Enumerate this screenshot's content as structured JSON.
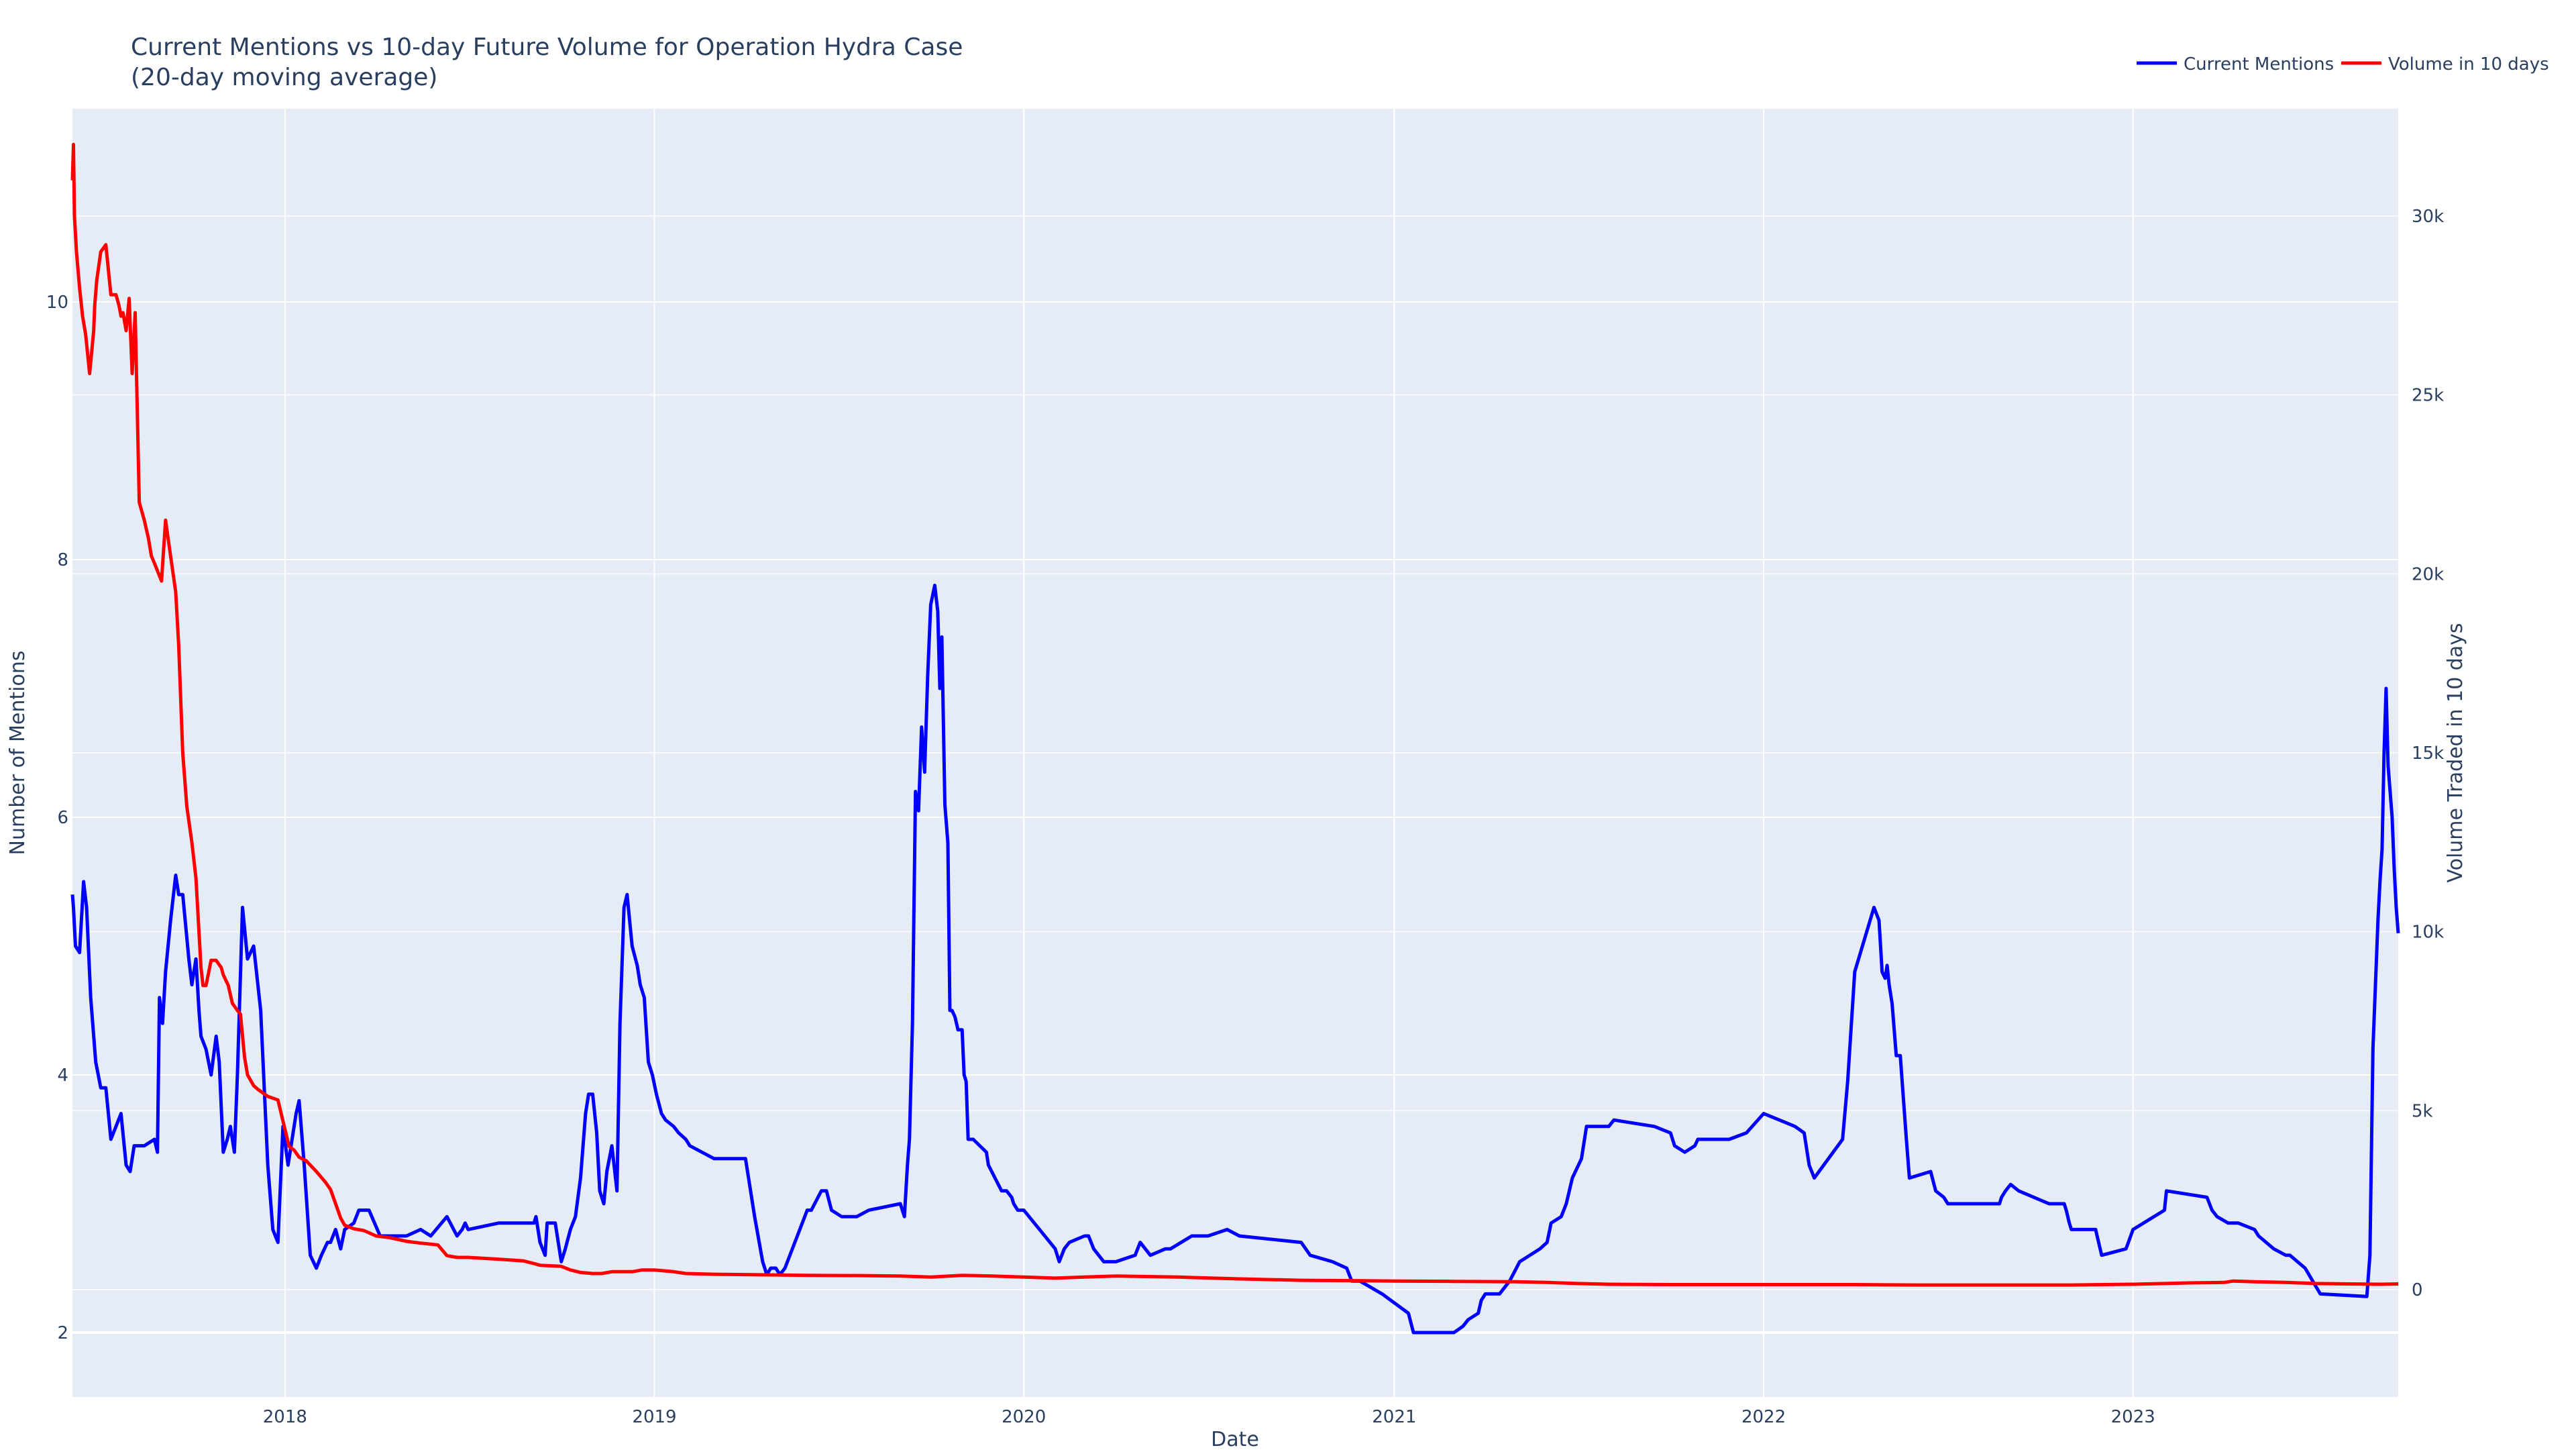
{
  "chart_data": {
    "type": "line",
    "title": "Current Mentions vs 10-day Future Volume for Operation Hydra Case",
    "subtitle": "(20-day moving average)",
    "xlabel": "Date",
    "ylabel": "Number of Mentions",
    "y2label": "Volume Traded in 10 days",
    "xlim": [
      "2017-06-05",
      "2023-09-20"
    ],
    "ylim": [
      1.5,
      11.5
    ],
    "y2lim": [
      -3000,
      33000
    ],
    "x_ticks": [
      "2018",
      "2019",
      "2020",
      "2021",
      "2022",
      "2023"
    ],
    "y_ticks": [
      "2",
      "4",
      "6",
      "8",
      "10"
    ],
    "y2_ticks": [
      "0",
      "5k",
      "10k",
      "15k",
      "20k",
      "25k",
      "30k"
    ],
    "grid": true,
    "legend_position": "top-right",
    "colors": {
      "plot_bg": "#e5ecf6",
      "grid": "#ffffff",
      "text": "#2a3f5f"
    },
    "series": [
      {
        "name": "Current Mentions",
        "color": "#0000ff",
        "axis": "left",
        "x": [
          "2017-06-05",
          "2017-06-06",
          "2017-06-08",
          "2017-06-12",
          "2017-06-16",
          "2017-06-19",
          "2017-06-23",
          "2017-06-28",
          "2017-07-03",
          "2017-07-08",
          "2017-07-13",
          "2017-07-18",
          "2017-07-23",
          "2017-07-28",
          "2017-08-01",
          "2017-08-05",
          "2017-08-10",
          "2017-08-15",
          "2017-08-25",
          "2017-08-28",
          "2017-08-30",
          "2017-09-02",
          "2017-09-05",
          "2017-09-10",
          "2017-09-15",
          "2017-09-18",
          "2017-09-22",
          "2017-09-28",
          "2017-10-01",
          "2017-10-05",
          "2017-10-08",
          "2017-10-10",
          "2017-10-15",
          "2017-10-20",
          "2017-10-25",
          "2017-10-28",
          "2017-11-01",
          "2017-11-05",
          "2017-11-08",
          "2017-11-12",
          "2017-11-15",
          "2017-11-20",
          "2017-11-25",
          "2017-12-01",
          "2017-12-08",
          "2017-12-15",
          "2017-12-20",
          "2017-12-25",
          "2017-12-30",
          "2018-01-04",
          "2018-01-08",
          "2018-01-12",
          "2018-01-15",
          "2018-01-20",
          "2018-01-26",
          "2018-02-01",
          "2018-02-06",
          "2018-02-12",
          "2018-02-15",
          "2018-02-20",
          "2018-02-25",
          "2018-03-01",
          "2018-03-10",
          "2018-03-15",
          "2018-03-25",
          "2018-04-05",
          "2018-04-25",
          "2018-05-01",
          "2018-05-15",
          "2018-05-25",
          "2018-06-10",
          "2018-06-20",
          "2018-06-25",
          "2018-06-28",
          "2018-07-01",
          "2018-07-31",
          "2018-08-01",
          "2018-09-04",
          "2018-09-06",
          "2018-09-10",
          "2018-09-15",
          "2018-09-17",
          "2018-09-25",
          "2018-10-01",
          "2018-10-05",
          "2018-10-10",
          "2018-10-15",
          "2018-10-20",
          "2018-10-25",
          "2018-10-28",
          "2018-11-01",
          "2018-11-05",
          "2018-11-08",
          "2018-11-12",
          "2018-11-15",
          "2018-11-20",
          "2018-11-25",
          "2018-11-28",
          "2018-12-02",
          "2018-12-05",
          "2018-12-10",
          "2018-12-15",
          "2018-12-18",
          "2018-12-22",
          "2018-12-26",
          "2018-12-30",
          "2019-01-03",
          "2019-01-08",
          "2019-01-12",
          "2019-01-20",
          "2019-01-25",
          "2019-02-01",
          "2019-02-05",
          "2019-03-01",
          "2019-04-01",
          "2019-04-10",
          "2019-04-18",
          "2019-04-22",
          "2019-04-26",
          "2019-05-01",
          "2019-05-05",
          "2019-05-10",
          "2019-06-01",
          "2019-06-05",
          "2019-06-15",
          "2019-06-20",
          "2019-06-25",
          "2019-07-05",
          "2019-07-20",
          "2019-08-01",
          "2019-09-01",
          "2019-09-05",
          "2019-09-08",
          "2019-09-10",
          "2019-09-13",
          "2019-09-16",
          "2019-09-19",
          "2019-09-22",
          "2019-09-25",
          "2019-09-28",
          "2019-10-01",
          "2019-10-05",
          "2019-10-08",
          "2019-10-10",
          "2019-10-12",
          "2019-10-15",
          "2019-10-18",
          "2019-10-20",
          "2019-10-22",
          "2019-10-25",
          "2019-10-28",
          "2019-11-01",
          "2019-11-03",
          "2019-11-05",
          "2019-11-07",
          "2019-11-12",
          "2019-11-25",
          "2019-11-27",
          "2019-12-10",
          "2019-12-15",
          "2019-12-20",
          "2019-12-22",
          "2019-12-26",
          "2020-01-01",
          "2020-02-01",
          "2020-02-05",
          "2020-02-10",
          "2020-02-15",
          "2020-03-01",
          "2020-03-05",
          "2020-03-10",
          "2020-03-20",
          "2020-04-01",
          "2020-04-20",
          "2020-04-25",
          "2020-05-05",
          "2020-05-20",
          "2020-05-25",
          "2020-06-15",
          "2020-07-01",
          "2020-07-20",
          "2020-08-01",
          "2020-10-01",
          "2020-10-10",
          "2020-11-01",
          "2020-11-15",
          "2020-11-20",
          "2020-11-28",
          "2020-12-20",
          "2021-01-15",
          "2021-01-20",
          "2021-03-01",
          "2021-03-10",
          "2021-03-15",
          "2021-03-25",
          "2021-03-28",
          "2021-04-01",
          "2021-04-15",
          "2021-04-25",
          "2021-05-05",
          "2021-05-15",
          "2021-05-25",
          "2021-06-01",
          "2021-06-05",
          "2021-06-15",
          "2021-06-20",
          "2021-06-26",
          "2021-07-05",
          "2021-07-10",
          "2021-07-20",
          "2021-07-25",
          "2021-08-01",
          "2021-08-06",
          "2021-09-15",
          "2021-10-01",
          "2021-10-05",
          "2021-10-15",
          "2021-10-25",
          "2021-10-28",
          "2021-11-28",
          "2021-12-15",
          "2022-01-01",
          "2022-02-01",
          "2022-02-10",
          "2022-02-15",
          "2022-02-20",
          "2022-03-20",
          "2022-03-25",
          "2022-04-01",
          "2022-04-20",
          "2022-04-25",
          "2022-04-28",
          "2022-05-01",
          "2022-05-03",
          "2022-05-05",
          "2022-05-08",
          "2022-05-12",
          "2022-05-16",
          "2022-05-22",
          "2022-05-25",
          "2022-06-15",
          "2022-06-20",
          "2022-06-28",
          "2022-07-02",
          "2022-08-20",
          "2022-08-22",
          "2022-08-24",
          "2022-08-28",
          "2022-09-02",
          "2022-09-10",
          "2022-10-10",
          "2022-10-25",
          "2022-10-27",
          "2022-10-30",
          "2022-11-01",
          "2022-11-05",
          "2022-11-15",
          "2022-11-25",
          "2022-12-01",
          "2022-12-25",
          "2023-01-01",
          "2023-02-01",
          "2023-02-03",
          "2023-03-15",
          "2023-03-20",
          "2023-03-25",
          "2023-04-05",
          "2023-04-15",
          "2023-05-01",
          "2023-05-05",
          "2023-05-20",
          "2023-06-01",
          "2023-06-05",
          "2023-06-20",
          "2023-07-05",
          "2023-08-20",
          "2023-08-23",
          "2023-08-26",
          "2023-08-28",
          "2023-08-31",
          "2023-09-02",
          "2023-09-04",
          "2023-09-06",
          "2023-09-08",
          "2023-09-10",
          "2023-09-12",
          "2023-09-14",
          "2023-09-16",
          "2023-09-18",
          "2023-09-20"
        ],
        "y": [
          5.4,
          5.3,
          5.0,
          4.95,
          5.5,
          5.3,
          4.6,
          4.1,
          3.9,
          3.9,
          3.5,
          3.6,
          3.7,
          3.3,
          3.25,
          3.45,
          3.45,
          3.45,
          3.5,
          3.4,
          4.6,
          4.4,
          4.8,
          5.2,
          5.55,
          5.4,
          5.4,
          4.9,
          4.7,
          4.9,
          4.5,
          4.3,
          4.2,
          4.0,
          4.3,
          4.1,
          3.4,
          3.5,
          3.6,
          3.4,
          4.0,
          5.3,
          4.9,
          5.0,
          4.5,
          3.3,
          2.8,
          2.7,
          3.6,
          3.3,
          3.5,
          3.7,
          3.8,
          3.3,
          2.6,
          2.5,
          2.6,
          2.7,
          2.7,
          2.8,
          2.65,
          2.8,
          2.85,
          2.95,
          2.95,
          2.75,
          2.75,
          2.75,
          2.8,
          2.75,
          2.9,
          2.75,
          2.8,
          2.85,
          2.8,
          2.85,
          2.85,
          2.85,
          2.9,
          2.7,
          2.6,
          2.85,
          2.85,
          2.55,
          2.65,
          2.8,
          2.9,
          3.2,
          3.7,
          3.85,
          3.85,
          3.55,
          3.1,
          3.0,
          3.25,
          3.45,
          3.1,
          4.4,
          5.3,
          5.4,
          5.0,
          4.85,
          4.7,
          4.6,
          4.1,
          4.0,
          3.85,
          3.7,
          3.65,
          3.6,
          3.55,
          3.5,
          3.45,
          3.35,
          3.35,
          2.9,
          2.55,
          2.45,
          2.5,
          2.5,
          2.45,
          2.5,
          2.95,
          2.95,
          3.1,
          3.1,
          2.95,
          2.9,
          2.9,
          2.95,
          3.0,
          2.9,
          3.3,
          3.5,
          4.4,
          6.2,
          6.05,
          6.7,
          6.35,
          7.1,
          7.65,
          7.8,
          7.6,
          7.0,
          7.4,
          6.1,
          5.8,
          4.5,
          4.5,
          4.45,
          4.35,
          4.35,
          4.0,
          3.95,
          3.5,
          3.5,
          3.4,
          3.3,
          3.1,
          3.1,
          3.05,
          3.0,
          2.95,
          2.95,
          2.65,
          2.55,
          2.65,
          2.7,
          2.75,
          2.75,
          2.65,
          2.55,
          2.55,
          2.6,
          2.7,
          2.6,
          2.65,
          2.65,
          2.75,
          2.75,
          2.8,
          2.75,
          2.7,
          2.6,
          2.55,
          2.5,
          2.4,
          2.4,
          2.3,
          2.15,
          2.0,
          2.0,
          2.05,
          2.1,
          2.15,
          2.25,
          2.3,
          2.3,
          2.4,
          2.55,
          2.6,
          2.65,
          2.7,
          2.85,
          2.9,
          3.0,
          3.2,
          3.35,
          3.6,
          3.6,
          3.6,
          3.6,
          3.65,
          3.6,
          3.55,
          3.45,
          3.4,
          3.45,
          3.5,
          3.5,
          3.55,
          3.7,
          3.6,
          3.55,
          3.3,
          3.2,
          3.5,
          3.95,
          4.8,
          5.3,
          5.2,
          4.8,
          4.75,
          4.85,
          4.7,
          4.55,
          4.15,
          4.15,
          3.5,
          3.2,
          3.25,
          3.1,
          3.05,
          3.0,
          3.0,
          3.0,
          3.05,
          3.1,
          3.15,
          3.1,
          3.0,
          3.0,
          2.95,
          2.85,
          2.8,
          2.8,
          2.8,
          2.8,
          2.6,
          2.65,
          2.8,
          2.95,
          3.1,
          3.05,
          2.95,
          2.9,
          2.85,
          2.85,
          2.8,
          2.75,
          2.65,
          2.6,
          2.6,
          2.5,
          2.3,
          2.28,
          2.6,
          4.2,
          4.6,
          5.2,
          5.5,
          5.75,
          6.5,
          7.0,
          6.4,
          6.2,
          6.0,
          5.6,
          5.3,
          5.1
        ]
      },
      {
        "name": "Volume in 10 days",
        "color": "#ff0000",
        "axis": "right",
        "x": [
          "2017-06-05",
          "2017-06-06",
          "2017-06-07",
          "2017-06-09",
          "2017-06-12",
          "2017-06-15",
          "2017-06-18",
          "2017-06-22",
          "2017-06-26",
          "2017-06-27",
          "2017-06-29",
          "2017-07-03",
          "2017-07-08",
          "2017-07-13",
          "2017-07-18",
          "2017-07-21",
          "2017-07-23",
          "2017-07-25",
          "2017-07-28",
          "2017-07-31",
          "2017-08-03",
          "2017-08-06",
          "2017-08-10",
          "2017-08-15",
          "2017-08-19",
          "2017-08-22",
          "2017-08-25",
          "2017-09-01",
          "2017-09-05",
          "2017-09-10",
          "2017-09-15",
          "2017-09-18",
          "2017-09-22",
          "2017-09-26",
          "2017-10-01",
          "2017-10-05",
          "2017-10-10",
          "2017-10-12",
          "2017-10-15",
          "2017-10-20",
          "2017-10-25",
          "2017-10-30",
          "2017-11-01",
          "2017-11-06",
          "2017-11-10",
          "2017-11-15",
          "2017-11-18",
          "2017-11-22",
          "2017-11-25",
          "2017-12-01",
          "2017-12-05",
          "2017-12-10",
          "2017-12-15",
          "2017-12-25",
          "2018-01-05",
          "2018-01-10",
          "2018-01-15",
          "2018-01-22",
          "2018-02-01",
          "2018-02-10",
          "2018-02-15",
          "2018-02-20",
          "2018-02-25",
          "2018-03-01",
          "2018-03-10",
          "2018-03-20",
          "2018-04-01",
          "2018-04-15",
          "2018-05-01",
          "2018-05-15",
          "2018-06-01",
          "2018-06-10",
          "2018-06-20",
          "2018-07-01",
          "2018-08-01",
          "2018-08-25",
          "2018-09-01",
          "2018-09-05",
          "2018-09-10",
          "2018-10-01",
          "2018-10-10",
          "2018-10-20",
          "2018-11-01",
          "2018-11-10",
          "2018-11-20",
          "2018-12-10",
          "2018-12-20",
          "2019-01-01",
          "2019-01-20",
          "2019-02-01",
          "2019-03-01",
          "2019-04-01",
          "2019-05-01",
          "2019-06-01",
          "2019-08-01",
          "2019-09-01",
          "2019-10-01",
          "2019-10-20",
          "2019-11-01",
          "2019-12-01",
          "2020-01-01",
          "2020-02-01",
          "2020-03-01",
          "2020-04-01",
          "2020-06-01",
          "2020-08-01",
          "2020-10-01",
          "2020-12-01",
          "2021-01-01",
          "2021-03-01",
          "2021-05-01",
          "2021-06-01",
          "2021-07-01",
          "2021-08-01",
          "2021-10-01",
          "2021-12-01",
          "2022-02-01",
          "2022-04-01",
          "2022-06-01",
          "2022-08-01",
          "2022-10-01",
          "2022-11-01",
          "2023-01-01",
          "2023-03-01",
          "2023-04-01",
          "2023-04-10",
          "2023-05-01",
          "2023-06-01",
          "2023-07-01",
          "2023-08-01",
          "2023-09-01",
          "2023-09-20"
        ],
        "y": [
          31000,
          32000,
          30000,
          29000,
          28000,
          27200,
          26700,
          25600,
          26800,
          27500,
          28200,
          29000,
          29200,
          27800,
          27800,
          27500,
          27200,
          27300,
          26800,
          27700,
          25600,
          27300,
          22000,
          21500,
          21000,
          20500,
          20300,
          19800,
          21500,
          20500,
          19500,
          18000,
          15000,
          13500,
          12500,
          11500,
          9000,
          8500,
          8500,
          9200,
          9200,
          9000,
          8800,
          8500,
          8000,
          7800,
          7700,
          6500,
          6000,
          5700,
          5600,
          5500,
          5400,
          5300,
          4000,
          3900,
          3700,
          3600,
          3300,
          3000,
          2800,
          2400,
          2000,
          1800,
          1700,
          1650,
          1500,
          1450,
          1350,
          1300,
          1250,
          950,
          900,
          900,
          850,
          800,
          750,
          720,
          680,
          650,
          550,
          480,
          450,
          450,
          500,
          500,
          550,
          550,
          500,
          450,
          430,
          420,
          410,
          400,
          390,
          380,
          350,
          380,
          400,
          380,
          350,
          320,
          350,
          380,
          350,
          300,
          260,
          250,
          240,
          230,
          220,
          200,
          170,
          150,
          140,
          140,
          140,
          140,
          130,
          130,
          130,
          130,
          150,
          190,
          200,
          240,
          220,
          200,
          170,
          160,
          150,
          160
        ]
      }
    ]
  },
  "legend": [
    {
      "label": "Current Mentions",
      "color": "#0000ff"
    },
    {
      "label": "Volume in 10 days",
      "color": "#ff0000"
    }
  ]
}
